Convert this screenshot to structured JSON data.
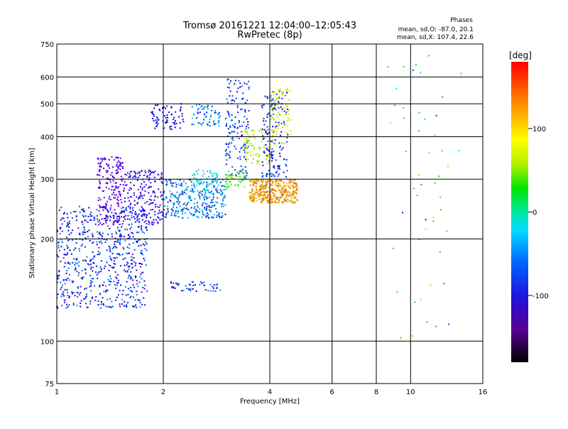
{
  "chart_data": {
    "type": "scatter",
    "title": "Tromsø 20161221 12:04:00–12:05:43",
    "subtitle": "RwPretec (8p)",
    "xlabel": "Frequency [MHz]",
    "ylabel": "Stationary phase Virtual Height [km]",
    "x_scale": "log",
    "y_scale": "log",
    "xlim": [
      1,
      16
    ],
    "ylim": [
      75,
      750
    ],
    "x_ticks": [
      "1",
      "2",
      "4",
      "6",
      "8",
      "10",
      "16"
    ],
    "x_tick_values": [
      1,
      2,
      4,
      6,
      8,
      10,
      16
    ],
    "y_ticks": [
      "75",
      "100",
      "200",
      "300",
      "400",
      "500",
      "600",
      "750"
    ],
    "y_tick_values": [
      75,
      100,
      200,
      300,
      400,
      500,
      600,
      750
    ],
    "grid": true,
    "stats": {
      "heading": "Phases",
      "line_o": "mean, sd,O: -87.0, 20.1",
      "line_x": "mean, sd,X: 107.4, 22.6"
    },
    "colorbar": {
      "unit": "[deg]",
      "range": [
        -180,
        180
      ],
      "ticks": [
        "100",
        "0",
        "-100"
      ],
      "tick_values": [
        100,
        0,
        -100
      ]
    },
    "clusters": [
      {
        "x": [
          1.0,
          1.8
        ],
        "y": [
          125,
          250
        ],
        "phase": [
          -130,
          -60
        ],
        "n": 650
      },
      {
        "x": [
          1.3,
          1.55
        ],
        "y": [
          220,
          350
        ],
        "phase": [
          -150,
          -120
        ],
        "n": 200
      },
      {
        "x": [
          1.55,
          2.0
        ],
        "y": [
          220,
          320
        ],
        "phase": [
          -140,
          -90
        ],
        "n": 200
      },
      {
        "x": [
          1.85,
          2.3
        ],
        "y": [
          420,
          500
        ],
        "phase": [
          -120,
          -90
        ],
        "n": 70
      },
      {
        "x": [
          2.0,
          3.0
        ],
        "y": [
          230,
          300
        ],
        "phase": [
          -100,
          -40
        ],
        "n": 300
      },
      {
        "x": [
          2.4,
          2.9
        ],
        "y": [
          275,
          320
        ],
        "phase": [
          -50,
          -20
        ],
        "n": 60
      },
      {
        "x": [
          2.4,
          2.9
        ],
        "y": [
          430,
          500
        ],
        "phase": [
          -110,
          -30
        ],
        "n": 60
      },
      {
        "x": [
          2.1,
          2.9
        ],
        "y": [
          140,
          150
        ],
        "phase": [
          -120,
          -60
        ],
        "n": 50
      },
      {
        "x": [
          3.0,
          3.5
        ],
        "y": [
          300,
          600
        ],
        "phase": [
          -110,
          -70
        ],
        "n": 150
      },
      {
        "x": [
          3.0,
          3.4
        ],
        "y": [
          280,
          320
        ],
        "phase": [
          30,
          80
        ],
        "n": 40
      },
      {
        "x": [
          3.4,
          4.0
        ],
        "y": [
          330,
          420
        ],
        "phase": [
          80,
          110
        ],
        "n": 80
      },
      {
        "x": [
          3.5,
          4.8
        ],
        "y": [
          255,
          300
        ],
        "phase": [
          120,
          150
        ],
        "n": 350
      },
      {
        "x": [
          3.8,
          4.5
        ],
        "y": [
          300,
          550
        ],
        "phase": [
          -120,
          -70
        ],
        "n": 150
      },
      {
        "x": [
          4.0,
          4.6
        ],
        "y": [
          380,
          560
        ],
        "phase": [
          90,
          120
        ],
        "n": 80
      },
      {
        "x": [
          8.5,
          14.0
        ],
        "y": [
          100,
          700
        ],
        "phase": [
          -150,
          160
        ],
        "n": 50
      }
    ]
  }
}
